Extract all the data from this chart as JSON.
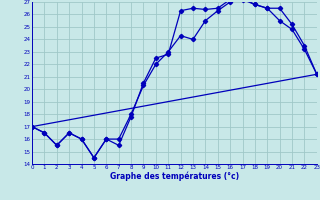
{
  "xlabel": "Graphe des températures (°c)",
  "bg_color": "#c8e8e8",
  "grid_color": "#a0c8c8",
  "line_color": "#0000bb",
  "ylim": [
    14,
    27
  ],
  "xlim": [
    0,
    23
  ],
  "yticks": [
    14,
    15,
    16,
    17,
    18,
    19,
    20,
    21,
    22,
    23,
    24,
    25,
    26,
    27
  ],
  "xticks": [
    0,
    1,
    2,
    3,
    4,
    5,
    6,
    7,
    8,
    9,
    10,
    11,
    12,
    13,
    14,
    15,
    16,
    17,
    18,
    19,
    20,
    21,
    22,
    23
  ],
  "line1_x": [
    0,
    1,
    2,
    3,
    4,
    5,
    6,
    7,
    8,
    9,
    10,
    11,
    12,
    13,
    14,
    15,
    16,
    17,
    18,
    19,
    20,
    21,
    22,
    23
  ],
  "line1_y": [
    17.0,
    16.5,
    15.5,
    16.5,
    16.0,
    14.5,
    16.0,
    15.5,
    17.8,
    20.5,
    22.5,
    22.8,
    26.3,
    26.5,
    26.4,
    26.5,
    27.2,
    27.3,
    26.8,
    26.5,
    25.5,
    24.8,
    23.2,
    21.2
  ],
  "line2_x": [
    0,
    1,
    2,
    3,
    4,
    5,
    6,
    7,
    8,
    9,
    10,
    11,
    12,
    13,
    14,
    15,
    16,
    17,
    18,
    19,
    20,
    21,
    22,
    23
  ],
  "line2_y": [
    17.0,
    16.5,
    15.5,
    16.5,
    16.0,
    14.5,
    16.0,
    16.0,
    18.0,
    20.3,
    22.0,
    23.0,
    24.3,
    24.0,
    25.5,
    26.3,
    27.0,
    27.2,
    26.8,
    26.5,
    26.5,
    25.2,
    23.5,
    21.2
  ],
  "line3_x": [
    0,
    23
  ],
  "line3_y": [
    17.0,
    21.2
  ]
}
